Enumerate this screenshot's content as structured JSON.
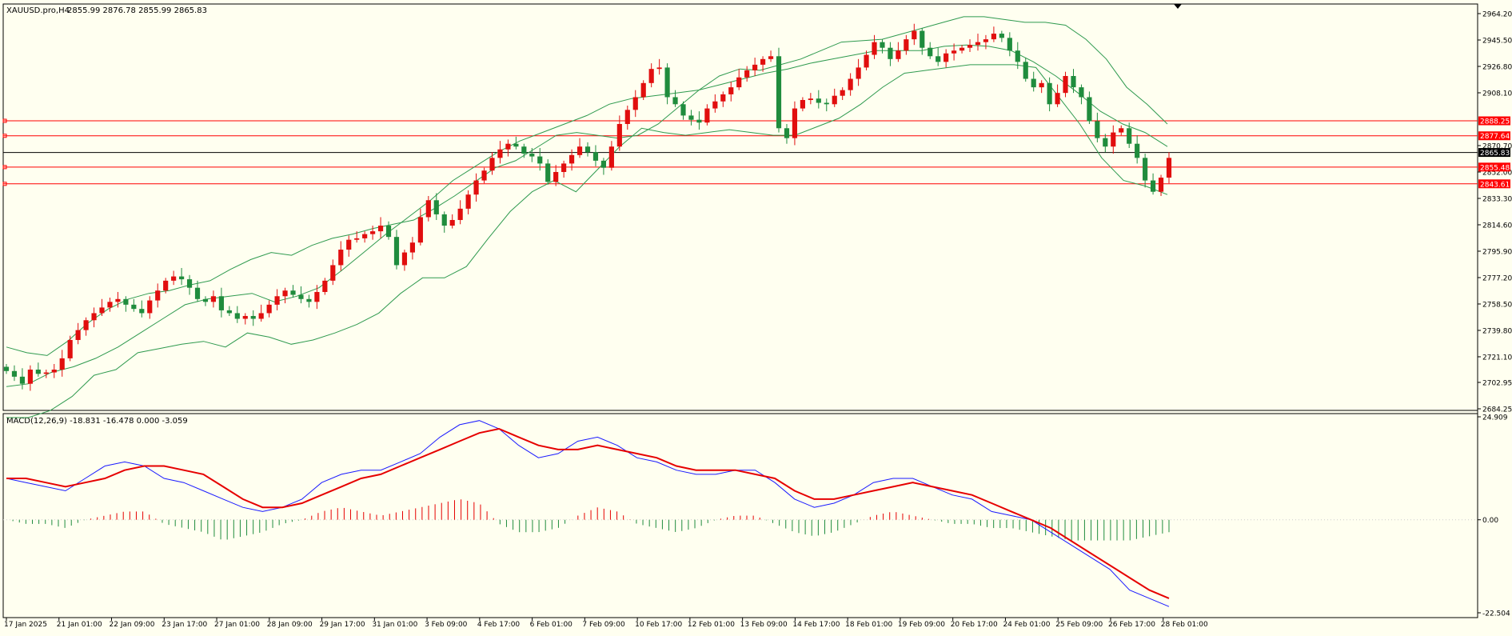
{
  "header": {
    "symbol": "XAUUSD.pro,H4",
    "ohlc": "2855.99 2876.78 2855.99 2865.83"
  },
  "macd_header": {
    "label": "MACD(12,26,9) -18.831 -16.478 0.000 -3.059"
  },
  "colors": {
    "background": "#fffff0",
    "bull": "#e10e0e",
    "bear": "#1f8c3d",
    "bands": "#2f9a4f",
    "level": "#ff0000",
    "macd_main": "#1a1aff",
    "macd_signal": "#e60000"
  },
  "chart_data": [
    {
      "type": "candlestick",
      "symbol": "XAUUSD.pro",
      "timeframe": "H4",
      "indicator": "Bollinger Bands",
      "ylim": [
        2684.25,
        2964.2
      ],
      "y_ticks": [
        "2964.20",
        "2945.50",
        "2926.80",
        "2908.10",
        "2870.70",
        "2852.00",
        "2833.30",
        "2814.60",
        "2795.90",
        "2777.20",
        "2758.50",
        "2739.80",
        "2721.10",
        "2702.95",
        "2684.25"
      ],
      "x_tick_labels": [
        "17 Jan 2025",
        "21 Jan 01:00",
        "22 Jan 09:00",
        "23 Jan 17:00",
        "27 Jan 01:00",
        "28 Jan 09:00",
        "29 Jan 17:00",
        "31 Jan 01:00",
        "3 Feb 09:00",
        "4 Feb 17:00",
        "6 Feb 01:00",
        "7 Feb 09:00",
        "10 Feb 17:00",
        "12 Feb 01:00",
        "13 Feb 09:00",
        "14 Feb 17:00",
        "18 Feb 01:00",
        "19 Feb 09:00",
        "20 Feb 17:00",
        "24 Feb 01:00",
        "25 Feb 09:00",
        "26 Feb 17:00",
        "28 Feb 01:00"
      ],
      "horizontal_levels": [
        {
          "value": 2888.25,
          "label": "2888.25"
        },
        {
          "value": 2877.64,
          "label": "2877.64"
        },
        {
          "value": 2855.48,
          "label": "2855.48"
        },
        {
          "value": 2843.61,
          "label": "2843.61"
        }
      ],
      "current_price": {
        "value": 2865.83,
        "label": "2865.83"
      },
      "series": [
        {
          "name": "close",
          "values": [
            2711,
            2707,
            2702,
            2712,
            2709,
            2710,
            2712,
            2720,
            2733,
            2740,
            2747,
            2752,
            2756,
            2760,
            2762,
            2758,
            2755,
            2752,
            2761,
            2768,
            2775,
            2778,
            2776,
            2770,
            2762,
            2760,
            2764,
            2754,
            2752,
            2748,
            2750,
            2748,
            2752,
            2758,
            2764,
            2768,
            2765,
            2762,
            2760,
            2767,
            2775,
            2786,
            2797,
            2804,
            2805,
            2808,
            2810,
            2814,
            2806,
            2786,
            2795,
            2802,
            2820,
            2832,
            2822,
            2814,
            2818,
            2826,
            2836,
            2846,
            2853,
            2862,
            2868,
            2872,
            2870,
            2865,
            2863,
            2858,
            2845,
            2852,
            2858,
            2864,
            2870,
            2866,
            2860,
            2855,
            2870,
            2886,
            2896,
            2905,
            2915,
            2925,
            2926,
            2905,
            2900,
            2892,
            2889,
            2887,
            2897,
            2902,
            2907,
            2912,
            2919,
            2924,
            2928,
            2932,
            2934,
            2883,
            2876,
            2897,
            2903,
            2904,
            2901,
            2900,
            2906,
            2910,
            2918,
            2926,
            2935,
            2944,
            2940,
            2932,
            2938,
            2946,
            2952,
            2940,
            2934,
            2930,
            2936,
            2938,
            2940,
            2942,
            2944,
            2946,
            2950,
            2947,
            2938,
            2930,
            2918,
            2912,
            2915,
            2900,
            2908,
            2920,
            2912,
            2905,
            2888,
            2876,
            2870,
            2880,
            2883,
            2872,
            2862,
            2846,
            2838,
            2848,
            2862
          ]
        },
        {
          "name": "bollinger_upper",
          "values": [
            2728,
            2724,
            2722,
            2732,
            2745,
            2755,
            2762,
            2766,
            2768,
            2772,
            2775,
            2783,
            2790,
            2795,
            2793,
            2800,
            2805,
            2808,
            2812,
            2815,
            2818,
            2826,
            2835,
            2845,
            2855,
            2860,
            2869,
            2878,
            2880,
            2878,
            2876,
            2878,
            2886,
            2898,
            2910,
            2920,
            2925,
            2924,
            2928,
            2932,
            2938,
            2944,
            2945,
            2946,
            2950,
            2954,
            2958,
            2962,
            2962,
            2960,
            2958,
            2958,
            2956,
            2946,
            2932,
            2912,
            2900,
            2886
          ]
        },
        {
          "name": "bollinger_middle",
          "values": [
            2700,
            2702,
            2710,
            2714,
            2720,
            2728,
            2738,
            2748,
            2758,
            2762,
            2764,
            2766,
            2760,
            2764,
            2770,
            2782,
            2795,
            2808,
            2820,
            2832,
            2846,
            2856,
            2866,
            2874,
            2880,
            2886,
            2892,
            2900,
            2904,
            2906,
            2908,
            2910,
            2914,
            2918,
            2922,
            2925,
            2929,
            2932,
            2935,
            2938,
            2938,
            2938,
            2941,
            2942,
            2941,
            2938,
            2930,
            2920,
            2908,
            2895,
            2886,
            2880,
            2870
          ]
        },
        {
          "name": "bollinger_lower",
          "values": [
            2678,
            2678,
            2683,
            2693,
            2708,
            2712,
            2724,
            2727,
            2730,
            2732,
            2728,
            2738,
            2735,
            2730,
            2733,
            2738,
            2744,
            2752,
            2766,
            2777,
            2777,
            2785,
            2805,
            2824,
            2838,
            2846,
            2838,
            2854,
            2870,
            2883,
            2880,
            2878,
            2880,
            2882,
            2880,
            2878,
            2878,
            2884,
            2890,
            2900,
            2912,
            2922,
            2924,
            2926,
            2928,
            2928,
            2928,
            2926,
            2906,
            2886,
            2862,
            2846,
            2842,
            2836
          ]
        }
      ]
    },
    {
      "type": "line",
      "indicator": "MACD",
      "params": "12,26,9",
      "ylim": [
        -22.504,
        24.909
      ],
      "y_ticks": [
        "24.909",
        "0.00",
        "-22.504"
      ],
      "series": [
        {
          "name": "macd",
          "values": [
            10,
            9,
            8,
            7,
            10,
            13,
            14,
            13,
            10,
            9,
            7,
            5,
            3,
            2,
            3,
            5,
            9,
            11,
            12,
            12,
            14,
            16,
            20,
            23,
            24,
            22,
            18,
            15,
            16,
            19,
            20,
            18,
            15,
            14,
            12,
            11,
            11,
            12,
            12,
            9,
            5,
            3,
            4,
            6,
            9,
            10,
            10,
            8,
            6,
            5,
            2,
            1,
            0,
            -3,
            -6,
            -9,
            -12,
            -17,
            -19,
            -21
          ]
        },
        {
          "name": "signal",
          "values": [
            10,
            10,
            9,
            8,
            9,
            10,
            12,
            13,
            13,
            12,
            11,
            8,
            5,
            3,
            3,
            4,
            6,
            8,
            10,
            11,
            13,
            15,
            17,
            19,
            21,
            22,
            20,
            18,
            17,
            17,
            18,
            17,
            16,
            15,
            13,
            12,
            12,
            12,
            11,
            10,
            7,
            5,
            5,
            6,
            7,
            8,
            9,
            8,
            7,
            6,
            4,
            2,
            0,
            -2,
            -5,
            -8,
            -11,
            -14,
            -17,
            -19
          ]
        },
        {
          "name": "histogram",
          "values": [
            0,
            -1,
            -1,
            -2,
            0,
            1,
            2,
            2,
            -1,
            -2,
            -3,
            -5,
            -4,
            -3,
            -1,
            0,
            2,
            3,
            2,
            1,
            2,
            3,
            4,
            5,
            4,
            -1,
            -3,
            -3,
            -2,
            1,
            3,
            2,
            -1,
            -2,
            -3,
            -2,
            0,
            1,
            1,
            -1,
            -3,
            -4,
            -3,
            -1,
            1,
            2,
            1,
            0,
            -1,
            -1,
            -2,
            -2,
            -3,
            -4,
            -5,
            -5,
            -5,
            -5,
            -4,
            -3
          ]
        }
      ]
    }
  ]
}
